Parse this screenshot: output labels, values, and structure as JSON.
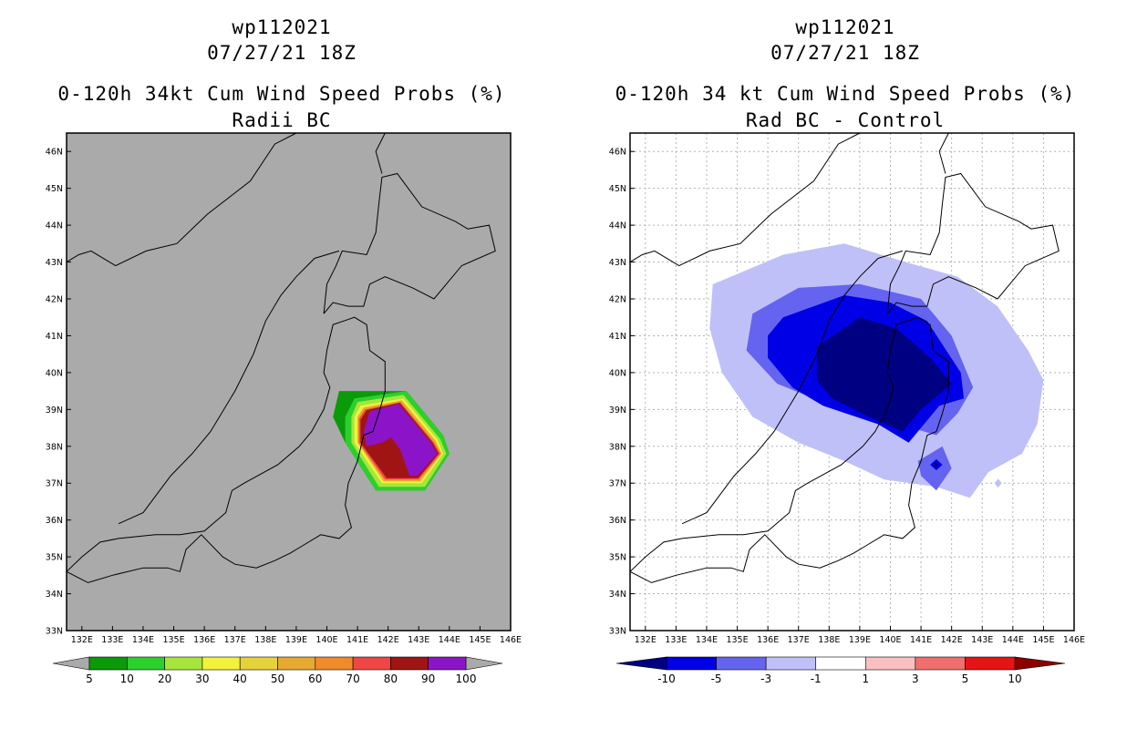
{
  "panels": [
    {
      "id": "left",
      "storm_id": "wp112021",
      "datetime": "07/27/21 18Z",
      "title": "0-120h 34kt Cum Wind Speed Probs (%)",
      "subtitle": "Radii BC",
      "background": "#aaaaaa",
      "colorbar": {
        "labels": [
          "5",
          "10",
          "20",
          "30",
          "40",
          "50",
          "60",
          "70",
          "80",
          "90",
          "100"
        ],
        "colors": [
          "#0a9a0a",
          "#2ccf2c",
          "#a6e63c",
          "#f2f23c",
          "#e6d23c",
          "#e6aa32",
          "#f08a2a",
          "#f04646",
          "#a01414",
          "#8c14c8"
        ],
        "left_arrow_color": "#aaaaaa",
        "right_arrow_color": "#aaaaaa"
      }
    },
    {
      "id": "right",
      "storm_id": "wp112021",
      "datetime": "07/27/21 18Z",
      "title": "0-120h 34 kt Cum Wind Speed Probs (%)",
      "subtitle": "Rad BC - Control",
      "background": "#ffffff",
      "colorbar": {
        "labels": [
          "-10",
          "-5",
          "-3",
          "-1",
          "1",
          "3",
          "5",
          "10"
        ],
        "colors": [
          "#0000e6",
          "#6464f0",
          "#c0c0f8",
          "#ffffff",
          "#fac0c0",
          "#f06e6e",
          "#e61414"
        ],
        "left_arrow_color": "#000082",
        "right_arrow_color": "#8c0000"
      }
    }
  ],
  "chart_data": [
    {
      "type": "heatmap",
      "title": "0-120h 34kt Cum Wind Speed Probs (%)",
      "subtitle": "Radii BC",
      "xlim": [
        131.5,
        146
      ],
      "ylim": [
        33,
        46.5
      ],
      "x_ticks": [
        "132E",
        "133E",
        "134E",
        "135E",
        "136E",
        "137E",
        "138E",
        "139E",
        "140E",
        "141E",
        "142E",
        "143E",
        "144E",
        "145E",
        "146E"
      ],
      "y_ticks": [
        "33N",
        "34N",
        "35N",
        "36N",
        "37N",
        "38N",
        "39N",
        "40N",
        "41N",
        "42N",
        "43N",
        "44N",
        "45N",
        "46N"
      ],
      "grid": false,
      "levels": [
        5,
        10,
        20,
        30,
        40,
        50,
        60,
        70,
        80,
        90,
        100
      ],
      "contours": [
        {
          "level": 5,
          "color": "#0a9a0a",
          "points": [
            [
              140.4,
              39.5
            ],
            [
              142.6,
              39.5
            ],
            [
              143.8,
              38.3
            ],
            [
              144.0,
              37.8
            ],
            [
              143.2,
              36.8
            ],
            [
              141.6,
              36.8
            ],
            [
              140.6,
              38.1
            ],
            [
              140.2,
              38.8
            ]
          ]
        },
        {
          "level": 10,
          "color": "#2ccf2c",
          "points": [
            [
              140.9,
              39.3
            ],
            [
              142.6,
              39.5
            ],
            [
              143.8,
              38.3
            ],
            [
              144.0,
              37.8
            ],
            [
              143.2,
              36.8
            ],
            [
              141.6,
              36.8
            ],
            [
              140.6,
              38.1
            ],
            [
              140.6,
              38.8
            ]
          ]
        },
        {
          "level": 20,
          "color": "#a6e63c",
          "points": [
            [
              141.0,
              39.2
            ],
            [
              142.5,
              39.4
            ],
            [
              143.7,
              38.2
            ],
            [
              143.9,
              37.8
            ],
            [
              143.2,
              36.9
            ],
            [
              141.7,
              36.9
            ],
            [
              140.8,
              38.1
            ],
            [
              140.8,
              38.8
            ]
          ]
        },
        {
          "level": 30,
          "color": "#f2f23c",
          "points": [
            [
              141.1,
              39.1
            ],
            [
              142.5,
              39.3
            ],
            [
              143.6,
              38.2
            ],
            [
              143.8,
              37.8
            ],
            [
              143.1,
              37.0
            ],
            [
              141.8,
              37.0
            ],
            [
              140.9,
              38.1
            ],
            [
              140.9,
              38.8
            ]
          ]
        },
        {
          "level": 50,
          "color": "#e6aa32",
          "points": [
            [
              141.2,
              39.05
            ],
            [
              142.45,
              39.25
            ],
            [
              143.55,
              38.15
            ],
            [
              143.75,
              37.8
            ],
            [
              143.05,
              37.05
            ],
            [
              141.85,
              37.05
            ],
            [
              141.0,
              38.1
            ],
            [
              141.0,
              38.8
            ]
          ]
        },
        {
          "level": 70,
          "color": "#f04646",
          "points": [
            [
              141.25,
              39.0
            ],
            [
              142.4,
              39.2
            ],
            [
              143.5,
              38.1
            ],
            [
              143.7,
              37.8
            ],
            [
              143.0,
              37.1
            ],
            [
              141.9,
              37.1
            ],
            [
              141.05,
              38.1
            ],
            [
              141.05,
              38.75
            ]
          ]
        },
        {
          "level": 90,
          "color": "#a01414",
          "points": [
            [
              141.3,
              38.98
            ],
            [
              142.38,
              39.18
            ],
            [
              143.45,
              38.1
            ],
            [
              143.65,
              37.8
            ],
            [
              142.98,
              37.14
            ],
            [
              141.95,
              37.14
            ],
            [
              141.1,
              38.1
            ],
            [
              141.1,
              38.72
            ]
          ]
        },
        {
          "level": 100,
          "color": "#8c14c8",
          "points": [
            [
              141.4,
              38.95
            ],
            [
              142.35,
              39.15
            ],
            [
              143.4,
              38.1
            ],
            [
              143.6,
              37.8
            ],
            [
              142.95,
              37.2
            ],
            [
              142.7,
              37.2
            ],
            [
              142.4,
              37.9
            ],
            [
              142.1,
              38.25
            ],
            [
              141.8,
              38.1
            ],
            [
              141.3,
              38.0
            ],
            [
              141.2,
              38.4
            ]
          ]
        }
      ]
    },
    {
      "type": "heatmap",
      "title": "0-120h 34 kt Cum Wind Speed Probs (%)",
      "subtitle": "Rad BC - Control",
      "xlim": [
        131.5,
        146
      ],
      "ylim": [
        33,
        46.5
      ],
      "x_ticks": [
        "132E",
        "133E",
        "134E",
        "135E",
        "136E",
        "137E",
        "138E",
        "139E",
        "140E",
        "141E",
        "142E",
        "143E",
        "144E",
        "145E",
        "146E"
      ],
      "y_ticks": [
        "33N",
        "34N",
        "35N",
        "36N",
        "37N",
        "38N",
        "39N",
        "40N",
        "41N",
        "42N",
        "43N",
        "44N",
        "45N",
        "46N"
      ],
      "grid": true,
      "levels": [
        -10,
        -5,
        -3,
        -1,
        1,
        3,
        5,
        10
      ],
      "contours": [
        {
          "level": -1,
          "color": "#c0c0f8",
          "points": [
            [
              134.5,
              42.5
            ],
            [
              136.5,
              43.2
            ],
            [
              138.5,
              43.5
            ],
            [
              140.5,
              43.0
            ],
            [
              142.2,
              42.6
            ],
            [
              143.5,
              41.8
            ],
            [
              144.5,
              40.6
            ],
            [
              145.0,
              39.8
            ],
            [
              144.8,
              38.6
            ],
            [
              144.3,
              37.8
            ],
            [
              143.2,
              37.3
            ],
            [
              142.6,
              36.6
            ],
            [
              141.5,
              36.9
            ],
            [
              139.8,
              37.1
            ],
            [
              138.5,
              37.6
            ],
            [
              137.0,
              38.1
            ],
            [
              135.5,
              38.8
            ],
            [
              134.5,
              40.0
            ],
            [
              134.1,
              41.2
            ],
            [
              134.2,
              42.4
            ]
          ]
        },
        {
          "level": -3,
          "color": "#6464f0",
          "points": [
            [
              135.5,
              41.6
            ],
            [
              137.0,
              42.3
            ],
            [
              139.0,
              42.4
            ],
            [
              141.0,
              42.0
            ],
            [
              142.0,
              41.0
            ],
            [
              142.7,
              39.6
            ],
            [
              142.2,
              38.9
            ],
            [
              141.5,
              38.3
            ],
            [
              139.5,
              38.8
            ],
            [
              137.5,
              39.3
            ],
            [
              136.3,
              39.7
            ],
            [
              135.3,
              40.6
            ]
          ]
        },
        {
          "level": -5,
          "color": "#0000e6",
          "points": [
            [
              136.5,
              41.5
            ],
            [
              138.5,
              42.1
            ],
            [
              140.0,
              41.9
            ],
            [
              141.2,
              41.4
            ],
            [
              142.3,
              40.0
            ],
            [
              142.4,
              39.3
            ],
            [
              141.6,
              39.1
            ],
            [
              140.6,
              38.1
            ],
            [
              139.6,
              38.6
            ],
            [
              137.8,
              39.1
            ],
            [
              136.8,
              39.6
            ],
            [
              136.0,
              40.4
            ],
            [
              136.0,
              41.0
            ]
          ]
        },
        {
          "level": -10,
          "color": "#000082",
          "points": [
            [
              137.6,
              40.7
            ],
            [
              139.0,
              41.5
            ],
            [
              140.2,
              41.2
            ],
            [
              141.3,
              40.4
            ],
            [
              142.0,
              39.7
            ],
            [
              141.0,
              39.0
            ],
            [
              140.4,
              38.4
            ],
            [
              139.3,
              38.8
            ],
            [
              138.1,
              39.3
            ],
            [
              137.6,
              39.8
            ]
          ]
        },
        {
          "level": -3,
          "color": "#6464f0",
          "points": [
            [
              140.9,
              37.6
            ],
            [
              141.7,
              38.0
            ],
            [
              142.0,
              37.4
            ],
            [
              141.5,
              36.8
            ],
            [
              141.0,
              37.2
            ]
          ]
        },
        {
          "level": -5,
          "color": "#0000e6",
          "points": [
            [
              141.3,
              37.5
            ],
            [
              141.5,
              37.65
            ],
            [
              141.7,
              37.5
            ],
            [
              141.5,
              37.35
            ]
          ]
        },
        {
          "level": -10,
          "color": "#000082",
          "points": [
            [
              141.42,
              37.5
            ],
            [
              141.5,
              37.57
            ],
            [
              141.58,
              37.5
            ],
            [
              141.5,
              37.43
            ]
          ]
        },
        {
          "level": -1,
          "color": "#c0c0f8",
          "points": [
            [
              143.4,
              37.0
            ],
            [
              143.52,
              37.12
            ],
            [
              143.64,
              37.0
            ],
            [
              143.52,
              36.88
            ]
          ]
        }
      ]
    }
  ]
}
